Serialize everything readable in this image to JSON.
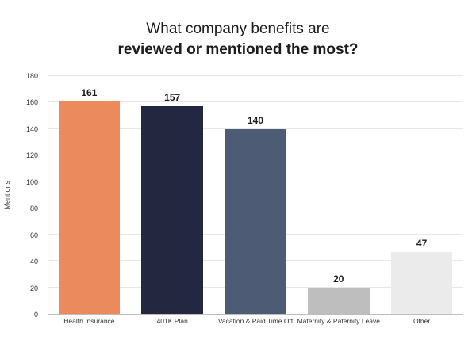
{
  "title": {
    "line1": "What company benefits are",
    "line2": "reviewed or mentioned the most?"
  },
  "chart_data": {
    "type": "bar",
    "title": "What company benefits are reviewed or mentioned the most?",
    "categories": [
      "Health Insurance",
      "401K Plan",
      "Vacation & Paid Time Off",
      "Maternity & Paternity Leave",
      "Other"
    ],
    "values": [
      161,
      157,
      140,
      20,
      47
    ],
    "colors": [
      "#EA8A5D",
      "#23273F",
      "#4D5C74",
      "#BEBEBE",
      "#EBEBEB"
    ],
    "value_label_color": "#1b1b1b",
    "xlabel": "",
    "ylabel": "Mentions",
    "ylim": [
      0,
      180
    ],
    "yticks": [
      0,
      20,
      40,
      60,
      80,
      100,
      120,
      140,
      160,
      180
    ],
    "grid": true,
    "legend": false
  }
}
